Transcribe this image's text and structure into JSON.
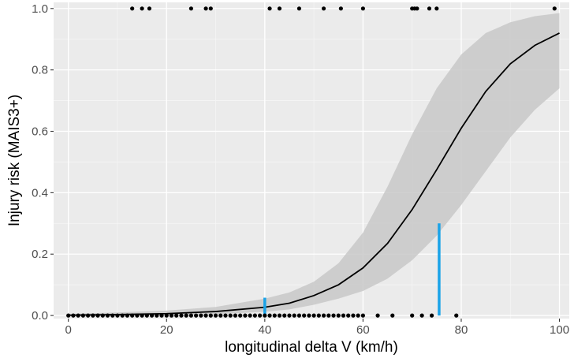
{
  "chart_data": {
    "type": "scatter",
    "xlabel": "longitudinal delta V (km/h)",
    "ylabel": "Injury risk (MAIS3+)",
    "xlim": [
      -3,
      102
    ],
    "ylim": [
      -0.01,
      1.02
    ],
    "x_ticks": [
      0,
      20,
      40,
      60,
      80,
      100
    ],
    "x_tick_labels": [
      "0",
      "20",
      "40",
      "60",
      "80",
      "100"
    ],
    "y_ticks": [
      0.0,
      0.2,
      0.4,
      0.6,
      0.8,
      1.0
    ],
    "y_tick_labels": [
      "0.0",
      "0.2",
      "0.4",
      "0.6",
      "0.8",
      "1.0"
    ],
    "grid": true,
    "series": [
      {
        "kind": "points",
        "values_x": [
          13,
          15,
          16.5,
          25,
          28,
          29,
          41,
          43,
          47,
          52,
          55.5,
          60,
          70,
          70.5,
          71,
          73.5,
          75,
          99
        ],
        "values_y": [
          1,
          1,
          1,
          1,
          1,
          1,
          1,
          1,
          1,
          1,
          1,
          1,
          1,
          1,
          1,
          1,
          1,
          1
        ]
      },
      {
        "kind": "points",
        "values_x": [
          0,
          1,
          2,
          3,
          4,
          5,
          6,
          7,
          8,
          9,
          10,
          11,
          12,
          13,
          14,
          15,
          16,
          17,
          18,
          19,
          20,
          21,
          22,
          23,
          24,
          25,
          26,
          27,
          28,
          29,
          30,
          31,
          32,
          33,
          34,
          35,
          36,
          37,
          38,
          39,
          40,
          41,
          42,
          43,
          44,
          45,
          46,
          47,
          48,
          49,
          50,
          51,
          52,
          53,
          54,
          55,
          56,
          57,
          58,
          59,
          60,
          63,
          66,
          70,
          72,
          74,
          79
        ],
        "values_y": [
          0,
          0,
          0,
          0,
          0,
          0,
          0,
          0,
          0,
          0,
          0,
          0,
          0,
          0,
          0,
          0,
          0,
          0,
          0,
          0,
          0,
          0,
          0,
          0,
          0,
          0,
          0,
          0,
          0,
          0,
          0,
          0,
          0,
          0,
          0,
          0,
          0,
          0,
          0,
          0,
          0,
          0,
          0,
          0,
          0,
          0,
          0,
          0,
          0,
          0,
          0,
          0,
          0,
          0,
          0,
          0,
          0,
          0,
          0,
          0,
          0,
          0,
          0,
          0,
          0,
          0,
          0
        ]
      },
      {
        "kind": "curve",
        "values_x": [
          0,
          10,
          20,
          30,
          40,
          45,
          50,
          55,
          60,
          65,
          70,
          75,
          80,
          85,
          90,
          95,
          100
        ],
        "values_y": [
          0.001,
          0.003,
          0.006,
          0.013,
          0.027,
          0.04,
          0.065,
          0.1,
          0.155,
          0.235,
          0.345,
          0.475,
          0.61,
          0.73,
          0.82,
          0.88,
          0.92
        ]
      },
      {
        "kind": "band",
        "values_x": [
          0,
          10,
          20,
          30,
          40,
          45,
          50,
          55,
          60,
          65,
          70,
          75,
          80,
          85,
          90,
          95,
          100
        ],
        "lower": [
          0,
          0,
          0.001,
          0.004,
          0.012,
          0.02,
          0.035,
          0.055,
          0.08,
          0.12,
          0.18,
          0.26,
          0.36,
          0.47,
          0.58,
          0.67,
          0.74
        ],
        "upper": [
          0.005,
          0.01,
          0.016,
          0.028,
          0.055,
          0.075,
          0.11,
          0.17,
          0.27,
          0.42,
          0.59,
          0.74,
          0.85,
          0.92,
          0.955,
          0.975,
          0.985
        ]
      }
    ],
    "markers": [
      {
        "x": 40,
        "y_from": 0,
        "y_to": 0.058
      },
      {
        "x": 75.5,
        "y_from": 0,
        "y_to": 0.3
      }
    ],
    "colors": {
      "panel_background": "#ebebeb",
      "grid_major": "#ffffff",
      "grid_minor": "#f5f5f5",
      "points": "#000000",
      "curve": "#000000",
      "band": "#c8c8c8",
      "marker": "#1aa3e8"
    }
  }
}
